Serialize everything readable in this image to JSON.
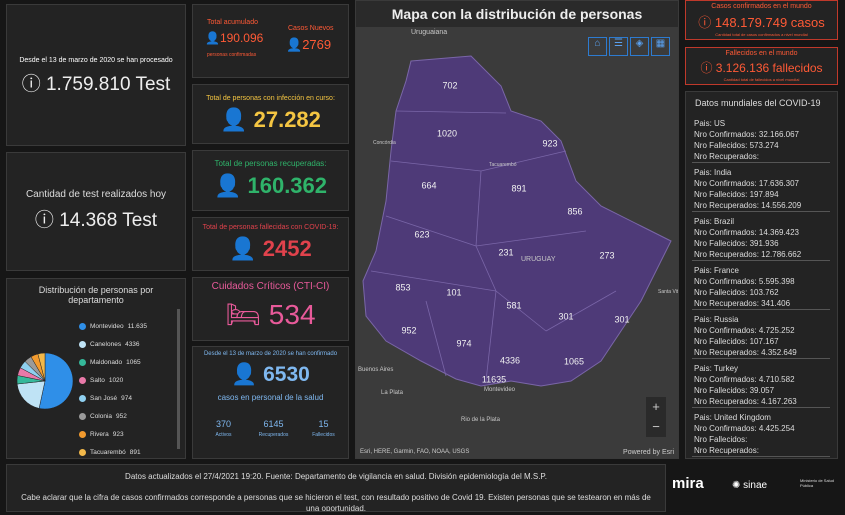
{
  "tests_total": {
    "caption": "Desde el 13 de marzo de 2020 se han procesado",
    "value": "1.759.810 Test"
  },
  "tests_today": {
    "caption": "Cantidad de test realizados hoy",
    "value": "14.368 Test"
  },
  "departments": {
    "title": "Distribución de personas por departamento",
    "items": [
      {
        "name": "Montevideo",
        "value": 11635,
        "label": "11.635",
        "color": "#2f8fe8"
      },
      {
        "name": "Canelones",
        "value": 4336,
        "color": "#bfe3f5"
      },
      {
        "name": "Maldonado",
        "value": 1065,
        "color": "#35b89a"
      },
      {
        "name": "Salto",
        "value": 1020,
        "color": "#e879a8"
      },
      {
        "name": "San José",
        "value": 974,
        "color": "#8fd0f0"
      },
      {
        "name": "Colonia",
        "value": 952,
        "color": "#9a9a9a"
      },
      {
        "name": "Rivera",
        "value": 923,
        "color": "#f29a2e"
      },
      {
        "name": "Tacuarembó",
        "value": 891,
        "color": "#f2b84a"
      }
    ]
  },
  "cumulative": {
    "title": "Total acumulado",
    "value": "190.096",
    "caption": "personas confirmadas"
  },
  "new_cases": {
    "title": "Casos Nuevos",
    "value": "2769"
  },
  "active": {
    "title": "Total de personas con infección en curso:",
    "value": "27.282"
  },
  "recovered": {
    "title": "Total de personas recuperadas:",
    "value": "160.362"
  },
  "deceased": {
    "title": "Total de personas fallecidas con COVID-19:",
    "value": "2452"
  },
  "critical": {
    "title": "Cuidados Críticos (CTI-CI)",
    "value": "534"
  },
  "health_staff": {
    "caption": "Desde el 13 de marzo de 2020 se han confirmado",
    "value": "6530",
    "subtitle": "casos en personal de la salud",
    "stats": [
      {
        "value": "370",
        "label": "Activos"
      },
      {
        "value": "6145",
        "label": "Recuperados"
      },
      {
        "value": "15",
        "label": "Fallecidos"
      }
    ]
  },
  "map": {
    "title": "Mapa con la distribución de personas",
    "regions": [
      "702",
      "1020",
      "923",
      "664",
      "891",
      "856",
      "623",
      "231",
      "273",
      "853",
      "101",
      "581",
      "301",
      "301",
      "952",
      "974",
      "4336",
      "1065",
      "11635"
    ],
    "places": [
      "Uruguaiana",
      "Concórdia",
      "Tacuarembó",
      "URUGUAY",
      "Santa Vitória do Palmar",
      "Buenos Aires",
      "La Plata",
      "Montevideo",
      "Rio de la Plata"
    ],
    "attribution": "Esri, HERE, Garmin, FAO, NOAA, USGS",
    "powered": "Powered by Esri"
  },
  "world_cases": {
    "title": "Casos confirmados en el mundo",
    "value": "148.179.749 casos",
    "note": "Cantidad total de casos confirmados a nivel mundial"
  },
  "world_deaths": {
    "title": "Fallecidos en el mundo",
    "value": "3.126.136 fallecidos",
    "note": "Cantidad total de fallecidos a nivel mundial"
  },
  "world_list": {
    "title": "Datos mundiales del COVID-19",
    "labels": {
      "country": "Pais:",
      "confirmed": "Nro Confirmados:",
      "deaths": "Nro Fallecidos:",
      "recovered": "Nro Recuperados:"
    },
    "countries": [
      {
        "name": "US",
        "confirmed": "32.166.067",
        "deaths": "573.274"
      },
      {
        "name": "India",
        "confirmed": "17.636.307",
        "deaths": "197.894",
        "recovered": "14.556.209"
      },
      {
        "name": "Brazil",
        "confirmed": "14.369.423",
        "deaths": "391.936",
        "recovered": "12.786.662"
      },
      {
        "name": "France",
        "confirmed": "5.595.398",
        "deaths": "103.762",
        "recovered": "341.406"
      },
      {
        "name": "Russia",
        "confirmed": "4.725.252",
        "deaths": "107.167",
        "recovered": "4.352.649"
      },
      {
        "name": "Turkey",
        "confirmed": "4.710.582",
        "deaths": "39.057",
        "recovered": "4.167.263"
      },
      {
        "name": "United Kingdom",
        "confirmed": "4.425.254"
      }
    ]
  },
  "footer": {
    "updated": "Datos actualizados el 27/4/2021 19:20. Fuente: Departamento de vigilancia en salud. División epidemiología del M.S.P.",
    "note": "Cabe aclarar que la cifra de casos confirmados corresponde a personas que se hicieron el test, con resultado positivo de Covid 19. Existen personas que se testearon en más de una oportunidad.",
    "logos": [
      "mira",
      "sinae",
      "Ministerio de Salud Pública"
    ]
  }
}
